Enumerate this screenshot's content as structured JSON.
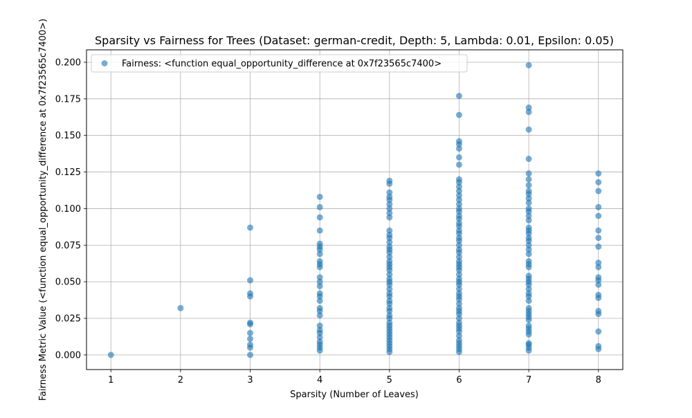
{
  "chart_data": {
    "type": "scatter",
    "title": "Sparsity vs Fairness for Trees (Dataset: german-credit, Depth: 5, Lambda: 0.01, Epsilon: 0.05)",
    "xlabel": "Sparsity (Number of Leaves)",
    "ylabel": "Fairness Metric Value (<function equal_opportunity_difference at 0x7f23565c7400>)",
    "xlim": [
      0.65,
      8.35
    ],
    "ylim": [
      -0.01,
      0.2085
    ],
    "xticks": [
      1,
      2,
      3,
      4,
      5,
      6,
      7,
      8
    ],
    "yticks": [
      0.0,
      0.025,
      0.05,
      0.075,
      0.1,
      0.125,
      0.15,
      0.175,
      0.2
    ],
    "ytick_labels": [
      "0.000",
      "0.025",
      "0.050",
      "0.075",
      "0.100",
      "0.125",
      "0.150",
      "0.175",
      "0.200"
    ],
    "grid": true,
    "legend_position": "upper-left",
    "point_color": "#1f77b4",
    "point_alpha": 0.6,
    "series": [
      {
        "name": "Fairness: <function equal_opportunity_difference at 0x7f23565c7400>",
        "points": [
          [
            1,
            0.0
          ],
          [
            2,
            0.032
          ],
          [
            3,
            0.0
          ],
          [
            3,
            0.005
          ],
          [
            3,
            0.007
          ],
          [
            3,
            0.011
          ],
          [
            3,
            0.015
          ],
          [
            3,
            0.021
          ],
          [
            3,
            0.022
          ],
          [
            3,
            0.04
          ],
          [
            3,
            0.042
          ],
          [
            3,
            0.051
          ],
          [
            3,
            0.087
          ],
          [
            4,
            0.003
          ],
          [
            4,
            0.005
          ],
          [
            4,
            0.007
          ],
          [
            4,
            0.009
          ],
          [
            4,
            0.012
          ],
          [
            4,
            0.015
          ],
          [
            4,
            0.017
          ],
          [
            4,
            0.02
          ],
          [
            4,
            0.027
          ],
          [
            4,
            0.03
          ],
          [
            4,
            0.032
          ],
          [
            4,
            0.037
          ],
          [
            4,
            0.04
          ],
          [
            4,
            0.042
          ],
          [
            4,
            0.047
          ],
          [
            4,
            0.05
          ],
          [
            4,
            0.053
          ],
          [
            4,
            0.06
          ],
          [
            4,
            0.062
          ],
          [
            4,
            0.064
          ],
          [
            4,
            0.069
          ],
          [
            4,
            0.072
          ],
          [
            4,
            0.074
          ],
          [
            4,
            0.076
          ],
          [
            4,
            0.085
          ],
          [
            4,
            0.094
          ],
          [
            4,
            0.101
          ],
          [
            4,
            0.108
          ],
          [
            5,
            0.002
          ],
          [
            5,
            0.004
          ],
          [
            5,
            0.006
          ],
          [
            5,
            0.008
          ],
          [
            5,
            0.01
          ],
          [
            5,
            0.012
          ],
          [
            5,
            0.014
          ],
          [
            5,
            0.016
          ],
          [
            5,
            0.018
          ],
          [
            5,
            0.02
          ],
          [
            5,
            0.022
          ],
          [
            5,
            0.025
          ],
          [
            5,
            0.027
          ],
          [
            5,
            0.03
          ],
          [
            5,
            0.032
          ],
          [
            5,
            0.035
          ],
          [
            5,
            0.037
          ],
          [
            5,
            0.04
          ],
          [
            5,
            0.042
          ],
          [
            5,
            0.045
          ],
          [
            5,
            0.048
          ],
          [
            5,
            0.05
          ],
          [
            5,
            0.052
          ],
          [
            5,
            0.055
          ],
          [
            5,
            0.058
          ],
          [
            5,
            0.06
          ],
          [
            5,
            0.062
          ],
          [
            5,
            0.064
          ],
          [
            5,
            0.067
          ],
          [
            5,
            0.07
          ],
          [
            5,
            0.072
          ],
          [
            5,
            0.074
          ],
          [
            5,
            0.077
          ],
          [
            5,
            0.08
          ],
          [
            5,
            0.082
          ],
          [
            5,
            0.085
          ],
          [
            5,
            0.094
          ],
          [
            5,
            0.097
          ],
          [
            5,
            0.1
          ],
          [
            5,
            0.103
          ],
          [
            5,
            0.106
          ],
          [
            5,
            0.108
          ],
          [
            5,
            0.111
          ],
          [
            5,
            0.117
          ],
          [
            5,
            0.119
          ],
          [
            6,
            0.002
          ],
          [
            6,
            0.004
          ],
          [
            6,
            0.006
          ],
          [
            6,
            0.008
          ],
          [
            6,
            0.01
          ],
          [
            6,
            0.013
          ],
          [
            6,
            0.016
          ],
          [
            6,
            0.018
          ],
          [
            6,
            0.02
          ],
          [
            6,
            0.022
          ],
          [
            6,
            0.025
          ],
          [
            6,
            0.028
          ],
          [
            6,
            0.03
          ],
          [
            6,
            0.032
          ],
          [
            6,
            0.035
          ],
          [
            6,
            0.038
          ],
          [
            6,
            0.04
          ],
          [
            6,
            0.042
          ],
          [
            6,
            0.045
          ],
          [
            6,
            0.048
          ],
          [
            6,
            0.05
          ],
          [
            6,
            0.052
          ],
          [
            6,
            0.055
          ],
          [
            6,
            0.058
          ],
          [
            6,
            0.06
          ],
          [
            6,
            0.062
          ],
          [
            6,
            0.064
          ],
          [
            6,
            0.067
          ],
          [
            6,
            0.07
          ],
          [
            6,
            0.072
          ],
          [
            6,
            0.075
          ],
          [
            6,
            0.078
          ],
          [
            6,
            0.08
          ],
          [
            6,
            0.083
          ],
          [
            6,
            0.085
          ],
          [
            6,
            0.088
          ],
          [
            6,
            0.09
          ],
          [
            6,
            0.093
          ],
          [
            6,
            0.095
          ],
          [
            6,
            0.098
          ],
          [
            6,
            0.1
          ],
          [
            6,
            0.103
          ],
          [
            6,
            0.106
          ],
          [
            6,
            0.109
          ],
          [
            6,
            0.112
          ],
          [
            6,
            0.115
          ],
          [
            6,
            0.118
          ],
          [
            6,
            0.12
          ],
          [
            6,
            0.13
          ],
          [
            6,
            0.135
          ],
          [
            6,
            0.141
          ],
          [
            6,
            0.144
          ],
          [
            6,
            0.146
          ],
          [
            6,
            0.164
          ],
          [
            6,
            0.177
          ],
          [
            7,
            0.003
          ],
          [
            7,
            0.005
          ],
          [
            7,
            0.007
          ],
          [
            7,
            0.008
          ],
          [
            7,
            0.014
          ],
          [
            7,
            0.016
          ],
          [
            7,
            0.018
          ],
          [
            7,
            0.02
          ],
          [
            7,
            0.024
          ],
          [
            7,
            0.026
          ],
          [
            7,
            0.028
          ],
          [
            7,
            0.03
          ],
          [
            7,
            0.032
          ],
          [
            7,
            0.037
          ],
          [
            7,
            0.04
          ],
          [
            7,
            0.042
          ],
          [
            7,
            0.045
          ],
          [
            7,
            0.048
          ],
          [
            7,
            0.05
          ],
          [
            7,
            0.052
          ],
          [
            7,
            0.054
          ],
          [
            7,
            0.06
          ],
          [
            7,
            0.062
          ],
          [
            7,
            0.064
          ],
          [
            7,
            0.069
          ],
          [
            7,
            0.072
          ],
          [
            7,
            0.075
          ],
          [
            7,
            0.078
          ],
          [
            7,
            0.08
          ],
          [
            7,
            0.083
          ],
          [
            7,
            0.085
          ],
          [
            7,
            0.087
          ],
          [
            7,
            0.092
          ],
          [
            7,
            0.095
          ],
          [
            7,
            0.098
          ],
          [
            7,
            0.1
          ],
          [
            7,
            0.104
          ],
          [
            7,
            0.107
          ],
          [
            7,
            0.11
          ],
          [
            7,
            0.112
          ],
          [
            7,
            0.116
          ],
          [
            7,
            0.12
          ],
          [
            7,
            0.124
          ],
          [
            7,
            0.134
          ],
          [
            7,
            0.154
          ],
          [
            7,
            0.166
          ],
          [
            7,
            0.169
          ],
          [
            7,
            0.198
          ],
          [
            8,
            0.004
          ],
          [
            8,
            0.006
          ],
          [
            8,
            0.016
          ],
          [
            8,
            0.028
          ],
          [
            8,
            0.03
          ],
          [
            8,
            0.039
          ],
          [
            8,
            0.041
          ],
          [
            8,
            0.048
          ],
          [
            8,
            0.051
          ],
          [
            8,
            0.053
          ],
          [
            8,
            0.06
          ],
          [
            8,
            0.063
          ],
          [
            8,
            0.074
          ],
          [
            8,
            0.08
          ],
          [
            8,
            0.085
          ],
          [
            8,
            0.095
          ],
          [
            8,
            0.101
          ],
          [
            8,
            0.112
          ],
          [
            8,
            0.118
          ],
          [
            8,
            0.124
          ]
        ]
      }
    ]
  }
}
